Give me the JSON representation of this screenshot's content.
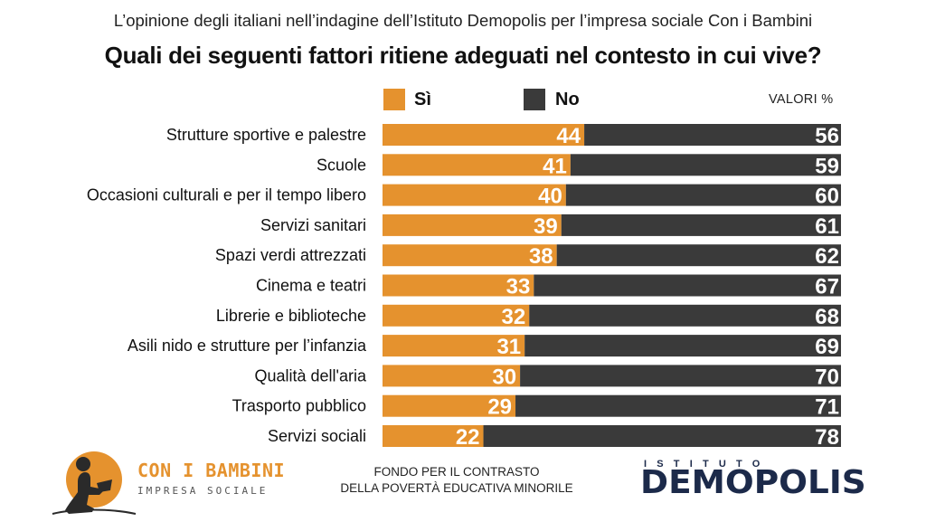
{
  "header": {
    "supertitle": "L’opinione degli italiani nell’indagine dell’Istituto Demopolis per l’impresa sociale Con i Bambini",
    "title": "Quali dei seguenti fattori ritiene adeguati nel contesto in cui vive?"
  },
  "legend": {
    "yes_label": "Sì",
    "no_label": "No",
    "unit_label": "VALORI %"
  },
  "colors": {
    "yes": "#e5922e",
    "no": "#3a3a3a"
  },
  "chart_data": {
    "type": "bar",
    "orientation": "horizontal",
    "stacked": true,
    "categories": [
      "Strutture sportive e palestre",
      "Scuole",
      "Occasioni culturali e per il tempo libero",
      "Servizi sanitari",
      "Spazi verdi attrezzati",
      "Cinema e teatri",
      "Librerie e biblioteche",
      "Asili nido e strutture per l’infanzia",
      "Qualità dell'aria",
      "Trasporto pubblico",
      "Servizi sociali"
    ],
    "series": [
      {
        "name": "Sì",
        "values": [
          44,
          41,
          40,
          39,
          38,
          33,
          32,
          31,
          30,
          29,
          22
        ]
      },
      {
        "name": "No",
        "values": [
          56,
          59,
          60,
          61,
          62,
          67,
          68,
          69,
          70,
          71,
          78
        ]
      }
    ],
    "xlim": [
      0,
      100
    ],
    "grid": false,
    "legend_position": "top"
  },
  "footer": {
    "logo_left_name": "CON I BAMBINI",
    "logo_left_sub": "IMPRESA SOCIALE",
    "fondo_line1": "FONDO PER IL CONTRASTO",
    "fondo_line2": "DELLA POVERTÀ EDUCATIVA MINORILE",
    "demopolis_top": "ISTITUTO",
    "demopolis_name": "DEMOPOLIS"
  }
}
